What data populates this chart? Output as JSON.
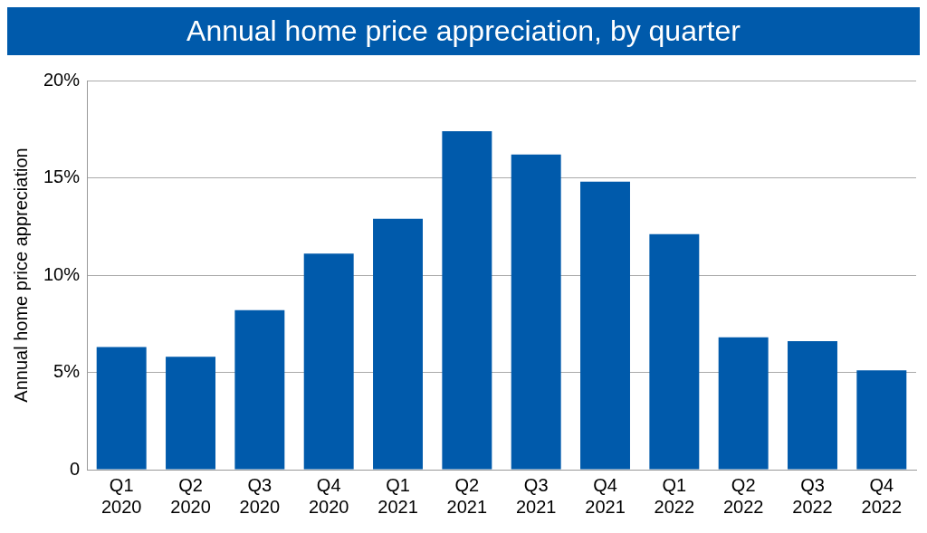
{
  "chart_data": {
    "type": "bar",
    "title": "Annual home price appreciation, by quarter",
    "ylabel": "Annual home price appreciation",
    "categories": [
      "Q1 2020",
      "Q2 2020",
      "Q3 2020",
      "Q4 2020",
      "Q1 2021",
      "Q2 2021",
      "Q3 2021",
      "Q4 2021",
      "Q1 2022",
      "Q2 2022",
      "Q3 2022",
      "Q4 2022"
    ],
    "values": [
      6.3,
      5.8,
      8.2,
      11.1,
      12.9,
      17.4,
      16.2,
      14.8,
      12.1,
      6.8,
      6.6,
      5.1
    ],
    "color": "#005aab",
    "ylim": [
      0,
      20
    ],
    "yticks": [
      {
        "value": 0,
        "label": "0"
      },
      {
        "value": 5,
        "label": "5%"
      },
      {
        "value": 10,
        "label": "10%"
      },
      {
        "value": 15,
        "label": "15%"
      },
      {
        "value": 20,
        "label": "20%"
      }
    ],
    "grid": "y",
    "legend": false
  }
}
